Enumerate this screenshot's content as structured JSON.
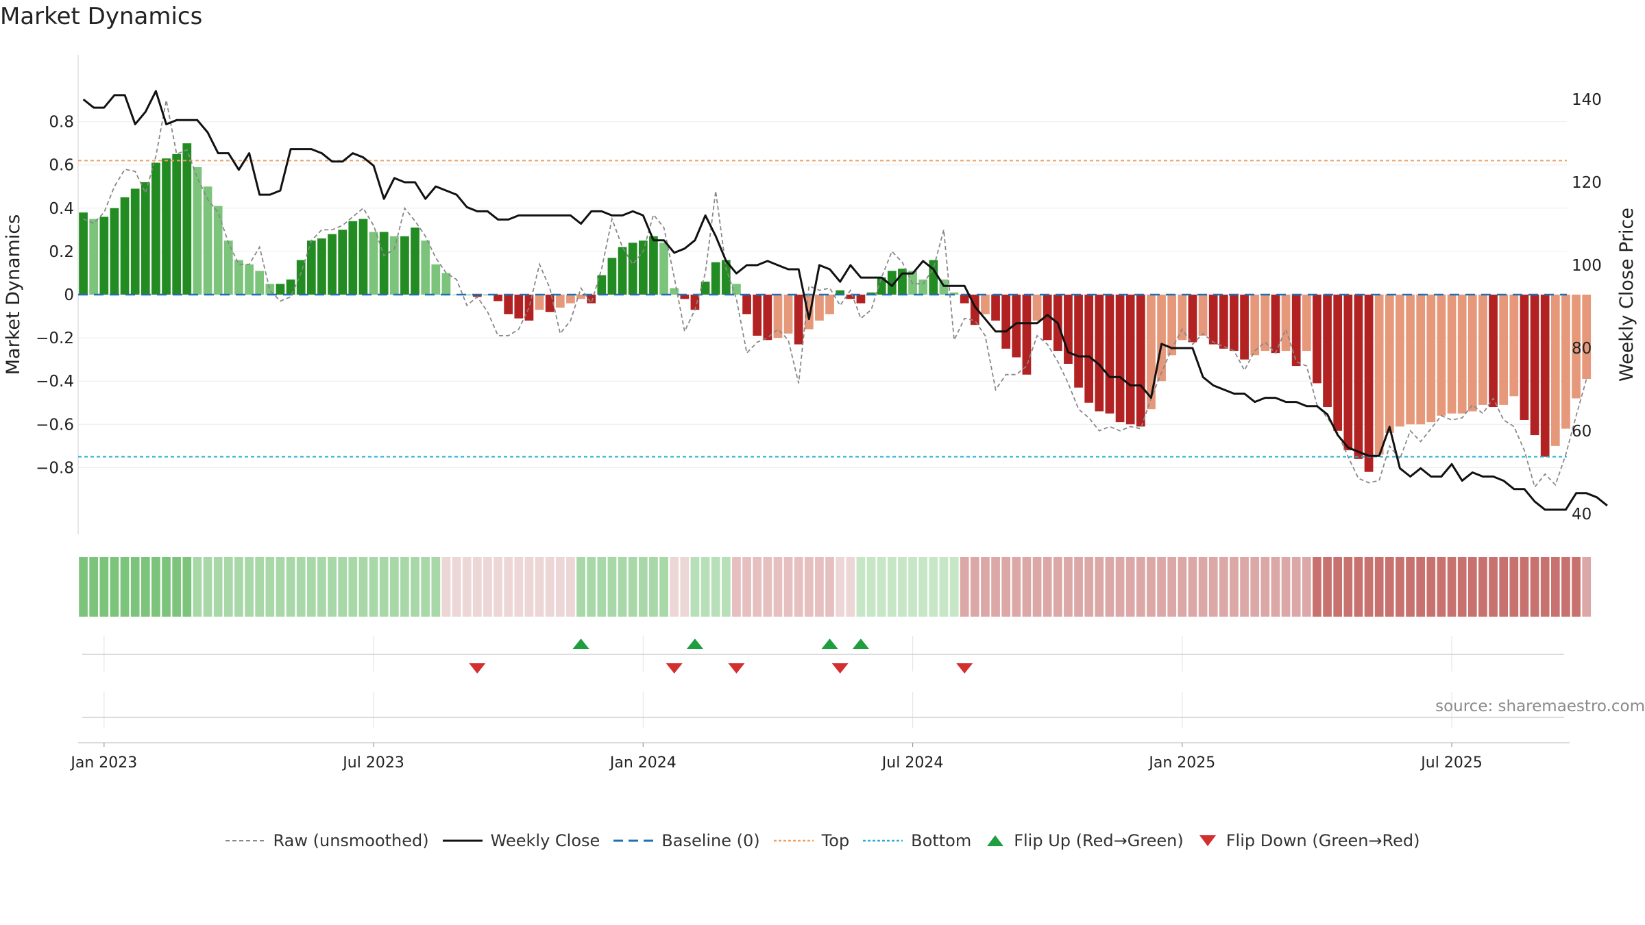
{
  "chart_data": {
    "type": "bar",
    "title": "Market Dynamics",
    "source": "source: sharemaestro.com",
    "ylabel_left": "Market Dynamics",
    "ylabel_right": "Weekly Close Price",
    "y_left_ticks": [
      "0.8",
      "0.6",
      "0.4",
      "0.2",
      "0",
      "−0.2",
      "−0.4",
      "−0.6",
      "−0.8"
    ],
    "y_right_ticks": [
      "140",
      "120",
      "100",
      "80",
      "60",
      "40"
    ],
    "x_tick_labels": [
      "Jan 2023",
      "Jul 2023",
      "Jan 2024",
      "Jul 2024",
      "Jan 2025",
      "Jul 2025"
    ],
    "ylim_left": [
      -0.9,
      0.88
    ],
    "ylim_right": [
      36,
      150
    ],
    "top_line": 0.62,
    "bottom_line": -0.75,
    "baseline": 0,
    "legend_placement": "bottom-center",
    "grid": true,
    "colors": {
      "bar_green_strong": "#228b22",
      "bar_green_light": "#7cc47c",
      "bar_red_strong": "#b22222",
      "bar_red_light": "#e5987a",
      "close_line": "#111111",
      "raw_line": "#888888",
      "baseline": "#1f6fb4",
      "top": "#f0a060",
      "bottom": "#2ab0d0",
      "flip_up": "#1e9e3e",
      "flip_down": "#d32f2f"
    },
    "legend": [
      {
        "label": "Raw (unsmoothed)",
        "kind": "dashed",
        "color": "#888888"
      },
      {
        "label": "Weekly Close",
        "kind": "solid",
        "color": "#111111"
      },
      {
        "label": "Baseline (0)",
        "kind": "longdash",
        "color": "#1f6fb4"
      },
      {
        "label": "Top",
        "kind": "dotted",
        "color": "#f0a060"
      },
      {
        "label": "Bottom",
        "kind": "dotted",
        "color": "#2ab0d0"
      },
      {
        "label": "Flip Up (Red→Green)",
        "kind": "tri-up",
        "color": "#1e9e3e"
      },
      {
        "label": "Flip Down (Green→Red)",
        "kind": "tri-down",
        "color": "#d32f2f"
      }
    ],
    "flip_up_weeks": [
      48,
      59,
      72,
      75
    ],
    "flip_down_weeks": [
      38,
      57,
      63,
      73,
      85
    ],
    "dynamics": [
      0.38,
      0.35,
      0.36,
      0.4,
      0.45,
      0.49,
      0.52,
      0.61,
      0.63,
      0.65,
      0.7,
      0.59,
      0.5,
      0.41,
      0.25,
      0.16,
      0.14,
      0.11,
      0.05,
      0.05,
      0.07,
      0.16,
      0.25,
      0.26,
      0.28,
      0.3,
      0.34,
      0.35,
      0.29,
      0.29,
      0.27,
      0.27,
      0.31,
      0.25,
      0.14,
      0.1,
      0.0,
      0.0,
      -0.01,
      0.0,
      -0.03,
      -0.09,
      -0.11,
      -0.12,
      -0.07,
      -0.08,
      -0.06,
      -0.04,
      -0.02,
      -0.04,
      0.09,
      0.17,
      0.22,
      0.24,
      0.25,
      0.27,
      0.24,
      0.03,
      -0.02,
      -0.07,
      0.06,
      0.15,
      0.16,
      0.05,
      -0.09,
      -0.19,
      -0.21,
      -0.2,
      -0.18,
      -0.23,
      -0.16,
      -0.12,
      -0.09,
      0.02,
      -0.02,
      -0.04,
      0.01,
      0.08,
      0.11,
      0.12,
      0.11,
      0.07,
      0.16,
      0.07,
      0.01,
      -0.04,
      -0.14,
      -0.09,
      -0.12,
      -0.25,
      -0.29,
      -0.37,
      -0.12,
      -0.21,
      -0.26,
      -0.32,
      -0.43,
      -0.5,
      -0.54,
      -0.55,
      -0.59,
      -0.6,
      -0.61,
      -0.53,
      -0.4,
      -0.28,
      -0.21,
      -0.22,
      -0.19,
      -0.23,
      -0.25,
      -0.26,
      -0.3,
      -0.28,
      -0.26,
      -0.27,
      -0.26,
      -0.33,
      -0.26,
      -0.41,
      -0.52,
      -0.63,
      -0.72,
      -0.76,
      -0.82,
      -0.74,
      -0.64,
      -0.61,
      -0.6,
      -0.6,
      -0.59,
      -0.56,
      -0.55,
      -0.55,
      -0.54,
      -0.51,
      -0.52,
      -0.51,
      -0.47,
      -0.58,
      -0.65,
      -0.75,
      -0.7,
      -0.62,
      -0.48,
      -0.39
    ],
    "raw": [
      0.35,
      0.33,
      0.38,
      0.5,
      0.58,
      0.57,
      0.47,
      0.64,
      0.9,
      0.65,
      0.67,
      0.54,
      0.44,
      0.38,
      0.24,
      0.14,
      0.14,
      0.22,
      0.02,
      -0.03,
      -0.01,
      0.1,
      0.25,
      0.3,
      0.3,
      0.32,
      0.36,
      0.4,
      0.32,
      0.18,
      0.21,
      0.4,
      0.34,
      0.27,
      0.17,
      0.1,
      0.07,
      -0.05,
      -0.01,
      -0.08,
      -0.19,
      -0.19,
      -0.16,
      -0.06,
      0.14,
      0.03,
      -0.18,
      -0.12,
      0.03,
      -0.04,
      0.12,
      0.35,
      0.22,
      0.14,
      0.2,
      0.37,
      0.31,
      0.08,
      -0.17,
      -0.07,
      0.1,
      0.48,
      0.12,
      -0.02,
      -0.27,
      -0.22,
      -0.2,
      -0.16,
      -0.21,
      -0.41,
      0.04,
      0.02,
      0.03,
      -0.05,
      0.02,
      -0.11,
      -0.07,
      0.08,
      0.2,
      0.15,
      0.05,
      0.05,
      0.12,
      0.3,
      -0.21,
      -0.11,
      -0.12,
      -0.19,
      -0.44,
      -0.37,
      -0.37,
      -0.33,
      -0.19,
      -0.23,
      -0.31,
      -0.41,
      -0.53,
      -0.57,
      -0.63,
      -0.61,
      -0.63,
      -0.61,
      -0.62,
      -0.48,
      -0.36,
      -0.25,
      -0.16,
      -0.23,
      -0.18,
      -0.22,
      -0.24,
      -0.26,
      -0.35,
      -0.26,
      -0.22,
      -0.27,
      -0.16,
      -0.31,
      -0.33,
      -0.51,
      -0.57,
      -0.64,
      -0.75,
      -0.85,
      -0.87,
      -0.86,
      -0.7,
      -0.76,
      -0.63,
      -0.68,
      -0.62,
      -0.56,
      -0.58,
      -0.57,
      -0.51,
      -0.55,
      -0.48,
      -0.58,
      -0.61,
      -0.72,
      -0.89,
      -0.83,
      -0.88,
      -0.74,
      -0.56,
      -0.39
    ],
    "close": [
      140,
      138,
      138,
      141,
      141,
      134,
      137,
      142,
      134,
      135,
      135,
      135,
      132,
      127,
      127,
      123,
      127,
      117,
      117,
      118,
      128,
      128,
      128,
      127,
      125,
      125,
      127,
      126,
      124,
      116,
      121,
      120,
      120,
      116,
      119,
      118,
      117,
      114,
      113,
      113,
      111,
      111,
      112,
      112,
      112,
      112,
      112,
      112,
      110,
      113,
      113,
      112,
      112,
      113,
      112,
      106,
      106,
      103,
      104,
      106,
      112,
      107,
      101,
      98,
      100,
      100,
      101,
      100,
      99,
      99,
      87,
      100,
      99,
      96,
      100,
      97,
      97,
      97,
      95,
      98,
      98,
      101,
      99,
      95,
      95,
      95,
      90,
      87,
      84,
      84,
      86,
      86,
      86,
      88,
      86,
      79,
      78,
      78,
      76,
      73,
      73,
      71,
      71,
      68,
      81,
      80,
      80,
      80,
      73,
      71,
      70,
      69,
      69,
      67,
      68,
      68,
      67,
      67,
      66,
      66,
      64,
      59,
      56,
      55,
      54,
      54,
      61,
      51,
      49,
      51,
      49,
      49,
      52,
      48,
      50,
      49,
      49,
      48,
      46,
      46,
      43,
      41,
      41,
      41,
      45,
      45,
      44,
      42
    ]
  },
  "bands": [
    {
      "range": [
        0,
        10
      ],
      "color": "#7cc47c"
    },
    {
      "range": [
        11,
        34
      ],
      "color": "#a8d8a8"
    },
    {
      "range": [
        35,
        47
      ],
      "color": "#ecd6d6"
    },
    {
      "range": [
        48,
        56
      ],
      "color": "#a8d8a8"
    },
    {
      "range": [
        57,
        58
      ],
      "color": "#ecd6d6"
    },
    {
      "range": [
        59,
        62
      ],
      "color": "#b8e0b8"
    },
    {
      "range": [
        63,
        72
      ],
      "color": "#e6c0c0"
    },
    {
      "range": [
        73,
        74
      ],
      "color": "#ecd6d6"
    },
    {
      "range": [
        75,
        84
      ],
      "color": "#c6e6c6"
    },
    {
      "range": [
        85,
        118
      ],
      "color": "#dca7a7"
    },
    {
      "range": [
        119,
        144
      ],
      "color": "#c8726f"
    },
    {
      "range": [
        145,
        145
      ],
      "color": "#dca7a7"
    }
  ],
  "n_weeks": 146,
  "week_of_ticks": [
    2,
    28,
    54,
    80,
    106,
    132
  ]
}
